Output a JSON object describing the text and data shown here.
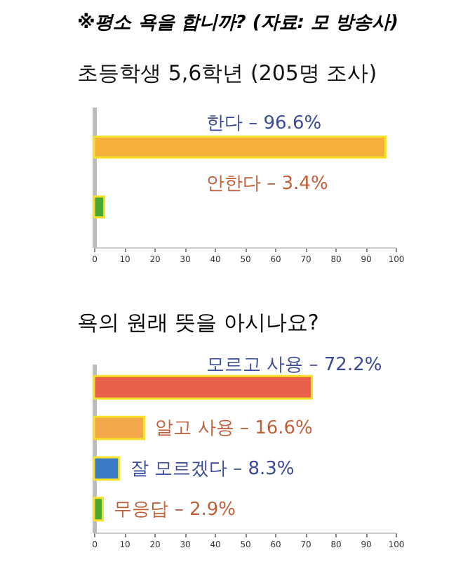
{
  "chart_data": [
    {
      "type": "bar",
      "orientation": "horizontal",
      "title": "※평소 욕을 합니까? (자료: 모 방송사)",
      "subtitle": "초등학생 5,6학년 (205명 조사)",
      "categories": [
        "한다 –",
        "안한다 –"
      ],
      "values": [
        96.6,
        3.4
      ],
      "colors": [
        "#f4b03a",
        "#4aa832"
      ],
      "value_labels": [
        "96.6%",
        "3.4%"
      ],
      "xlim": [
        0,
        100
      ],
      "xticks": [
        0,
        10,
        20,
        30,
        40,
        50,
        60,
        70,
        80,
        90,
        100
      ],
      "tick_labels": "x",
      "grid": false,
      "legend": false
    },
    {
      "type": "bar",
      "orientation": "horizontal",
      "title": "욕의 원래 뜻을 아시나요?",
      "categories": [
        "모르고 사용 –",
        "알고 사용 –",
        "잘 모르겠다 –",
        "무응답 –"
      ],
      "values": [
        72.2,
        16.6,
        8.3,
        2.9
      ],
      "colors": [
        "#e8604a",
        "#f2a84a",
        "#3a7cc8",
        "#4aa832"
      ],
      "value_labels": [
        "72.2%",
        "16.6%",
        "8.3%",
        "2.9%"
      ],
      "xlim": [
        0,
        100
      ],
      "xticks": [
        0,
        10,
        20,
        30,
        40,
        50,
        60,
        70,
        80,
        90,
        100
      ],
      "tick_labels": "x",
      "grid": false,
      "legend": false
    }
  ]
}
